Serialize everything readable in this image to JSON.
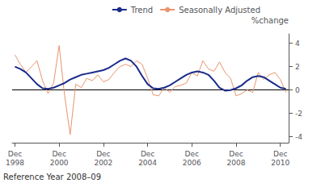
{
  "chart_data": {
    "type": "line",
    "categories": [
      "Dec\n1998",
      null,
      null,
      null,
      null,
      null,
      null,
      null,
      "Dec\n2000",
      null,
      null,
      null,
      null,
      null,
      null,
      null,
      "Dec\n2002",
      null,
      null,
      null,
      null,
      null,
      null,
      null,
      "Dec\n2004",
      null,
      null,
      null,
      null,
      null,
      null,
      null,
      "Dec\n2006",
      null,
      null,
      null,
      null,
      null,
      null,
      null,
      "Dec\n2008",
      null,
      null,
      null,
      null,
      null,
      null,
      null,
      "Dec\n2010",
      null
    ],
    "series": [
      {
        "name": "Seasonally Adjusted",
        "color": "#e8956e",
        "values": [
          3.0,
          2.2,
          1.5,
          2.0,
          2.5,
          0.8,
          -0.3,
          0.6,
          3.8,
          -0.5,
          -3.8,
          0.5,
          0.2,
          1.0,
          0.8,
          1.3,
          0.7,
          0.9,
          1.5,
          2.0,
          2.2,
          2.0,
          2.5,
          2.2,
          1.0,
          -0.4,
          -0.5,
          0.2,
          -0.2,
          0.3,
          0.4,
          0.6,
          1.5,
          1.2,
          2.5,
          1.8,
          1.6,
          2.4,
          1.5,
          1.0,
          -0.5,
          -0.3,
          0.0,
          -0.2,
          1.5,
          0.9,
          1.3,
          1.5,
          0.9,
          -0.2
        ]
      },
      {
        "name": "Trend",
        "color": "#1a2b8a",
        "values": [
          2.0,
          1.8,
          1.5,
          1.0,
          0.5,
          0.15,
          0.1,
          0.2,
          0.4,
          0.6,
          0.9,
          1.1,
          1.3,
          1.4,
          1.5,
          1.6,
          1.7,
          1.9,
          2.2,
          2.5,
          2.7,
          2.5,
          2.0,
          1.2,
          0.5,
          0.15,
          0.1,
          0.2,
          0.4,
          0.7,
          1.0,
          1.3,
          1.5,
          1.6,
          1.5,
          1.3,
          0.8,
          0.2,
          -0.05,
          0.0,
          0.15,
          0.4,
          0.8,
          1.1,
          1.2,
          1.1,
          0.8,
          0.5,
          0.2,
          0.1
        ]
      }
    ],
    "ylabel": "%change",
    "ylim": [
      -4.5,
      4.8
    ],
    "yticks": [
      -4,
      -2,
      0,
      2,
      4
    ],
    "hlines": [
      {
        "y": 0,
        "color": "#000000"
      }
    ],
    "annotations": [
      "Reference Year 2008–09"
    ],
    "legend": "upper right",
    "grid": false
  }
}
